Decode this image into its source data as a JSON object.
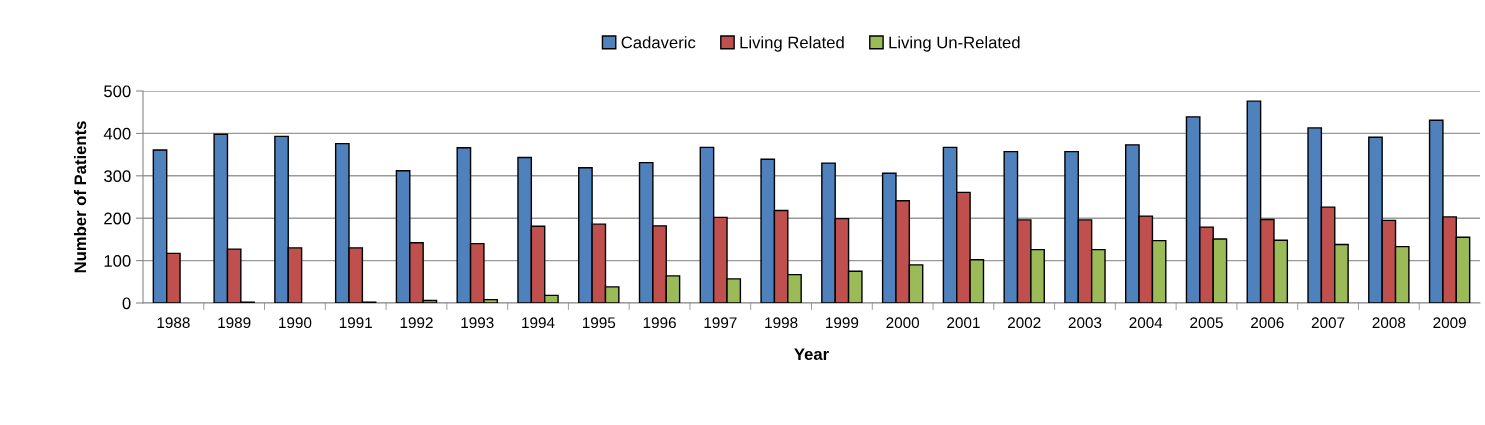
{
  "chart_data": {
    "type": "bar",
    "xlabel": "Year",
    "ylabel": "Number of Patients",
    "categories": [
      "1988",
      "1989",
      "1990",
      "1991",
      "1992",
      "1993",
      "1994",
      "1995",
      "1996",
      "1997",
      "1998",
      "1999",
      "2000",
      "2001",
      "2002",
      "2003",
      "2004",
      "2005",
      "2006",
      "2007",
      "2008",
      "2009"
    ],
    "series": [
      {
        "name": "Cadaveric",
        "color": "#4f81bd",
        "values": [
          361,
          398,
          393,
          376,
          312,
          366,
          343,
          319,
          331,
          367,
          339,
          330,
          306,
          367,
          357,
          357,
          373,
          439,
          476,
          413,
          391,
          431
        ]
      },
      {
        "name": "Living Related",
        "color": "#c0504d",
        "values": [
          117,
          127,
          130,
          130,
          142,
          140,
          181,
          186,
          182,
          202,
          218,
          199,
          241,
          261,
          196,
          196,
          205,
          179,
          197,
          226,
          195,
          203
        ]
      },
      {
        "name": "Living Un-Related",
        "color": "#9bbb59",
        "values": [
          0,
          2,
          null,
          2,
          6,
          8,
          18,
          38,
          64,
          57,
          67,
          75,
          90,
          102,
          126,
          126,
          147,
          151,
          148,
          138,
          133,
          155
        ]
      }
    ],
    "ylim": [
      0,
      500
    ],
    "yticks": [
      0,
      100,
      200,
      300,
      400,
      500
    ],
    "grid": "y",
    "legend": "top"
  }
}
